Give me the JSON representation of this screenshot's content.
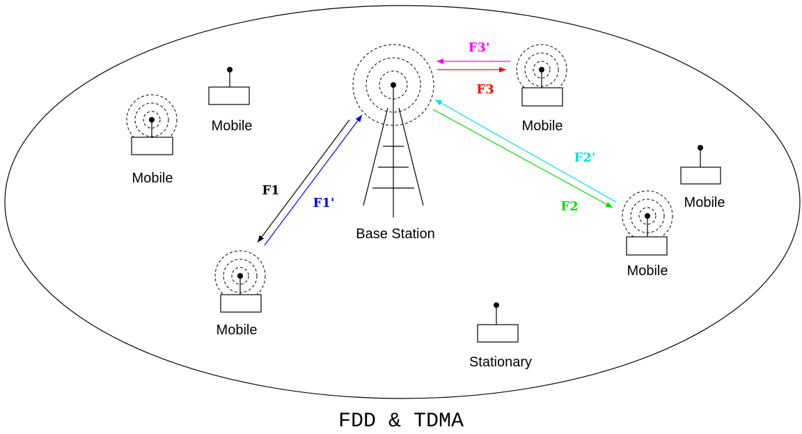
{
  "caption": "FDD & TDMA",
  "nodes": [
    {
      "label": "Base Station"
    },
    {
      "label": "Mobile"
    },
    {
      "label": "Mobile"
    },
    {
      "label": "Mobile"
    },
    {
      "label": "Mobile"
    },
    {
      "label": "Mobile"
    },
    {
      "label": "Mobile"
    },
    {
      "label": "Stationary"
    }
  ],
  "links": [
    {
      "label": "F1"
    },
    {
      "label": "F1'"
    },
    {
      "label": "F2"
    },
    {
      "label": "F2'"
    },
    {
      "label": "F3"
    },
    {
      "label": "F3'"
    }
  ]
}
